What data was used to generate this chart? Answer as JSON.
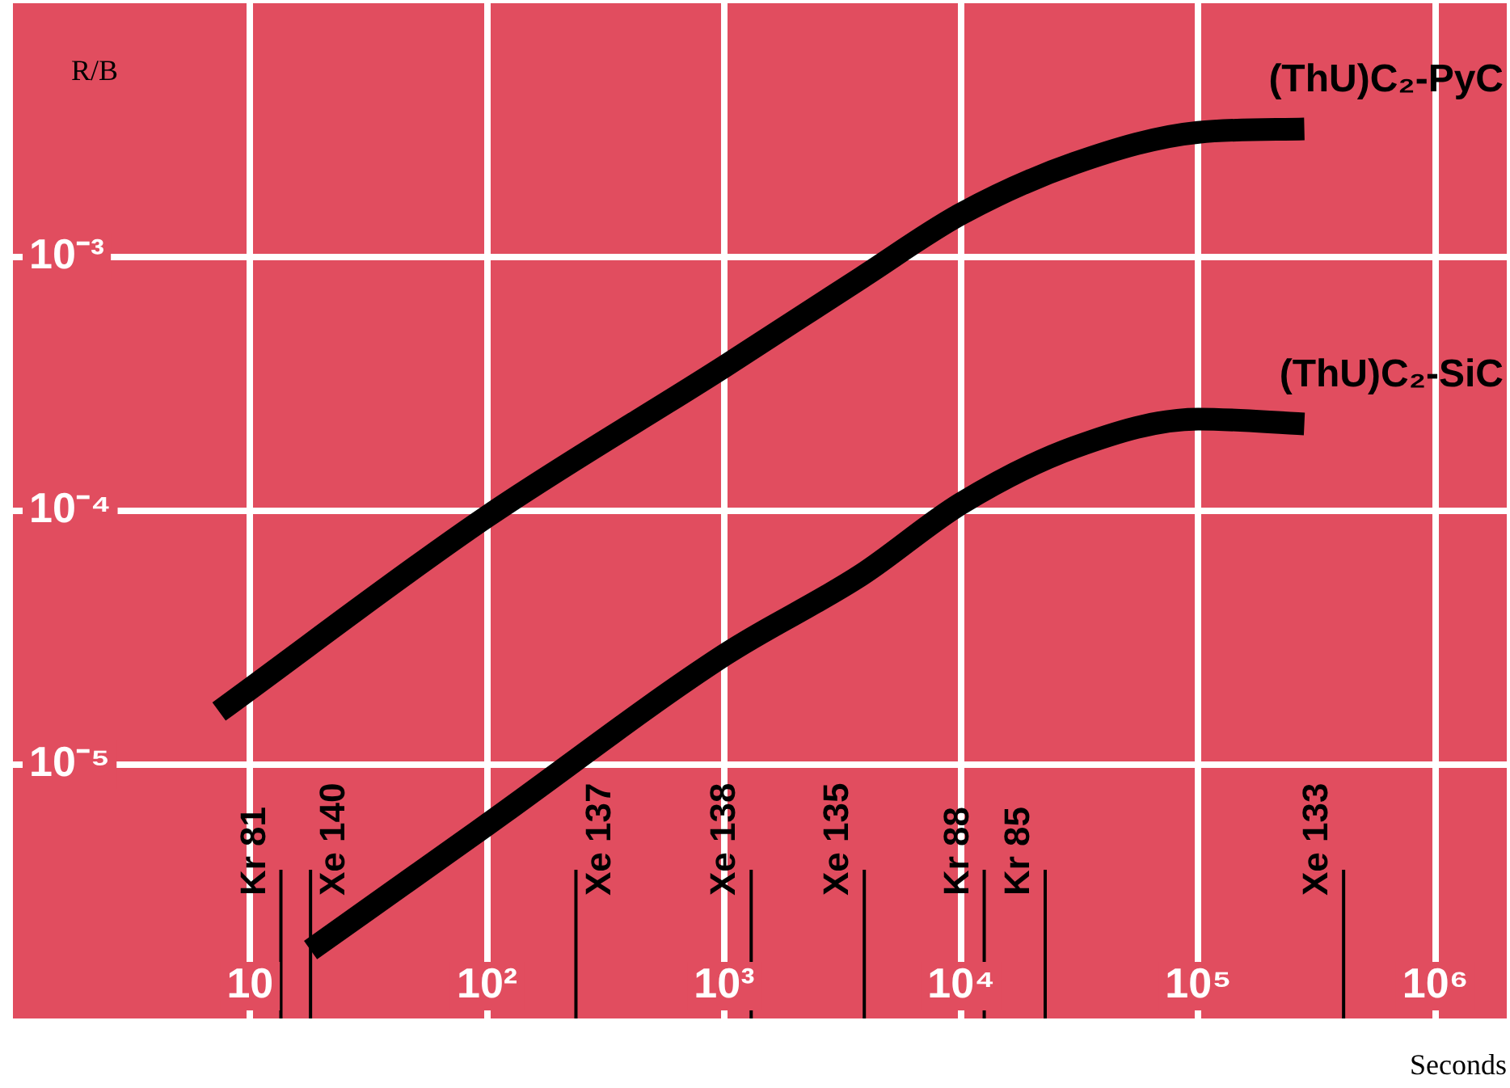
{
  "chart_data": {
    "type": "line",
    "xlabel": "Seconds",
    "ylabel": "R/B",
    "log": "xy",
    "grid": true,
    "marker": "none",
    "legend": false,
    "xlim": [
      1,
      2000000
    ],
    "ylim": [
      1e-06,
      0.01
    ],
    "xticks": [
      {
        "value": 10,
        "label": "10"
      },
      {
        "value": 100,
        "label": "10²"
      },
      {
        "value": 1000,
        "label": "10³"
      },
      {
        "value": 10000,
        "label": "10⁴"
      },
      {
        "value": 100000,
        "label": "10⁵"
      },
      {
        "value": 1000000,
        "label": "10⁶"
      }
    ],
    "yticks": [
      {
        "value": 1e-05,
        "label": "10⁻⁵"
      },
      {
        "value": 0.0001,
        "label": "10⁻⁴"
      },
      {
        "value": 0.001,
        "label": "10⁻³"
      }
    ],
    "series": [
      {
        "name": "(ThU)C₂-PyC",
        "color": "#000000",
        "x": [
          7.4,
          100,
          1000,
          3800,
          10000,
          30000,
          100000,
          280000
        ],
        "values": [
          1.62e-05,
          9.5e-05,
          0.00037,
          0.00083,
          0.00148,
          0.00234,
          0.0031,
          0.0032
        ]
      },
      {
        "name": "(ThU)C₂-SiC",
        "color": "#000000",
        "x": [
          18,
          100,
          1000,
          3800,
          10000,
          30000,
          100000,
          280000
        ],
        "values": [
          1.86e-06,
          5.8e-06,
          2.7e-05,
          5.6e-05,
          0.000107,
          0.000178,
          0.00023,
          0.00022
        ]
      }
    ],
    "ref_lines": [
      {
        "axis": "x",
        "value": 13.5,
        "label": "Kr 81"
      },
      {
        "axis": "x",
        "value": 18,
        "label": "Xe 140"
      },
      {
        "axis": "x",
        "value": 237,
        "label": "Xe 137"
      },
      {
        "axis": "x",
        "value": 1300,
        "label": "Xe 138"
      },
      {
        "axis": "x",
        "value": 3900,
        "label": "Xe 135"
      },
      {
        "axis": "x",
        "value": 12500,
        "label": "Kr 88"
      },
      {
        "axis": "x",
        "value": 22600,
        "label": "Kr 85"
      },
      {
        "axis": "x",
        "value": 410000,
        "label": "Xe 133"
      }
    ]
  }
}
